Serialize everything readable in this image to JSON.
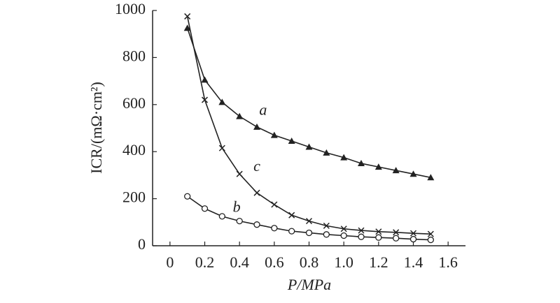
{
  "chart_data": {
    "type": "line",
    "x_label": "P/MPa",
    "y_label": "ICR/(mΩ·cm²)",
    "x": [
      0.1,
      0.2,
      0.3,
      0.4,
      0.5,
      0.6,
      0.7,
      0.8,
      0.9,
      1.0,
      1.1,
      1.2,
      1.3,
      1.4,
      1.5
    ],
    "series": [
      {
        "name": "a",
        "color": "#222222",
        "marker": "triangle",
        "values": [
          925,
          705,
          610,
          550,
          505,
          470,
          445,
          420,
          395,
          375,
          350,
          335,
          320,
          305,
          290
        ]
      },
      {
        "name": "b",
        "color": "#222222",
        "marker": "circle",
        "values": [
          210,
          158,
          125,
          105,
          90,
          75,
          62,
          55,
          48,
          43,
          38,
          35,
          32,
          28,
          25
        ]
      },
      {
        "name": "c",
        "color": "#222222",
        "marker": "cross",
        "values": [
          975,
          620,
          415,
          305,
          225,
          175,
          130,
          105,
          85,
          72,
          65,
          60,
          57,
          53,
          50
        ]
      }
    ],
    "xlim": [
      -0.1,
      1.7
    ],
    "ylim": [
      0,
      1000
    ],
    "xticks": [
      0,
      0.2,
      0.4,
      0.6,
      0.8,
      {
        "value": 1,
        "label": "1.0"
      },
      1.2,
      1.4,
      1.6
    ],
    "yticks": [
      0,
      200,
      400,
      600,
      800,
      1000
    ]
  }
}
